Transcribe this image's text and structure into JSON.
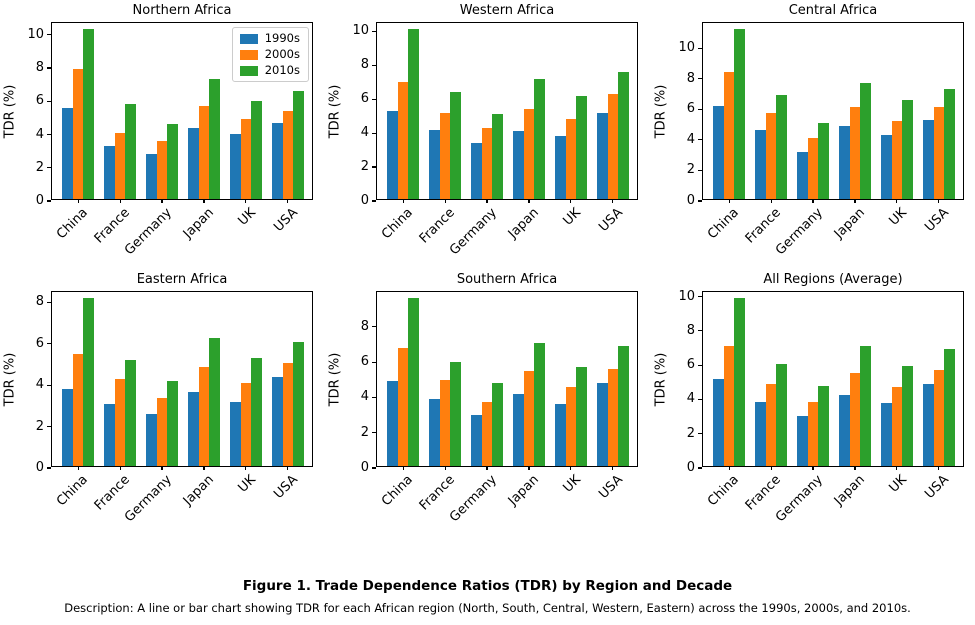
{
  "figure": {
    "caption_title": "Figure 1. Trade Dependence Ratios (TDR) by Region and Decade",
    "caption_description": "Description: A line or bar chart showing TDR for each African region (North, South, Central, Western, Eastern) across the 1990s, 2000s, and 2010s."
  },
  "colors": {
    "1990s": "#1f77b4",
    "2000s": "#ff7f0e",
    "2010s": "#2ca02c",
    "axis": "#000000",
    "background": "#ffffff",
    "legend_border": "#cccccc"
  },
  "legend": {
    "entries": [
      "1990s",
      "2000s",
      "2010s"
    ],
    "position": "upper-right of first subplot only"
  },
  "chart_data": [
    {
      "type": "bar",
      "title": "Northern Africa",
      "ylabel": "TDR (%)",
      "categories": [
        "China",
        "France",
        "Germany",
        "Japan",
        "UK",
        "USA"
      ],
      "series": [
        {
          "name": "1990s",
          "values": [
            5.5,
            3.2,
            2.7,
            4.3,
            3.9,
            4.6
          ]
        },
        {
          "name": "2000s",
          "values": [
            7.8,
            4.0,
            3.5,
            5.6,
            4.8,
            5.3
          ]
        },
        {
          "name": "2010s",
          "values": [
            10.2,
            5.7,
            4.5,
            7.2,
            5.9,
            6.5
          ]
        }
      ],
      "yticks": [
        0,
        2,
        4,
        6,
        8,
        10
      ],
      "ylim": [
        0,
        10.71
      ],
      "grid": false,
      "show_legend": true
    },
    {
      "type": "bar",
      "title": "Western Africa",
      "ylabel": "TDR (%)",
      "categories": [
        "China",
        "France",
        "Germany",
        "Japan",
        "UK",
        "USA"
      ],
      "series": [
        {
          "name": "1990s",
          "values": [
            5.2,
            4.1,
            3.3,
            4.0,
            3.7,
            5.1
          ]
        },
        {
          "name": "2000s",
          "values": [
            6.9,
            5.1,
            4.2,
            5.3,
            4.7,
            6.2
          ]
        },
        {
          "name": "2010s",
          "values": [
            10.0,
            6.3,
            5.0,
            7.1,
            6.1,
            7.5
          ]
        }
      ],
      "yticks": [
        0,
        2,
        4,
        6,
        8,
        10
      ],
      "ylim": [
        0,
        10.5
      ],
      "grid": false,
      "show_legend": false
    },
    {
      "type": "bar",
      "title": "Central Africa",
      "ylabel": "TDR (%)",
      "categories": [
        "China",
        "France",
        "Germany",
        "Japan",
        "UK",
        "USA"
      ],
      "series": [
        {
          "name": "1990s",
          "values": [
            6.1,
            4.5,
            3.1,
            4.8,
            4.2,
            5.2
          ]
        },
        {
          "name": "2000s",
          "values": [
            8.3,
            5.6,
            4.0,
            6.0,
            5.1,
            6.0
          ]
        },
        {
          "name": "2010s",
          "values": [
            11.1,
            6.8,
            5.0,
            7.6,
            6.5,
            7.2
          ]
        }
      ],
      "yticks": [
        0,
        2,
        4,
        6,
        8,
        10
      ],
      "ylim": [
        0,
        11.655
      ],
      "grid": false,
      "show_legend": false
    },
    {
      "type": "bar",
      "title": "Eastern Africa",
      "ylabel": "TDR (%)",
      "categories": [
        "China",
        "France",
        "Germany",
        "Japan",
        "UK",
        "USA"
      ],
      "series": [
        {
          "name": "1990s",
          "values": [
            3.7,
            3.0,
            2.5,
            3.6,
            3.1,
            4.3
          ]
        },
        {
          "name": "2000s",
          "values": [
            5.4,
            4.2,
            3.3,
            4.8,
            4.0,
            5.0
          ]
        },
        {
          "name": "2010s",
          "values": [
            8.1,
            5.1,
            4.1,
            6.2,
            5.2,
            6.0
          ]
        }
      ],
      "yticks": [
        0,
        2,
        4,
        6,
        8
      ],
      "ylim": [
        0,
        8.505
      ],
      "grid": false,
      "show_legend": false
    },
    {
      "type": "bar",
      "title": "Southern Africa",
      "ylabel": "TDR (%)",
      "categories": [
        "China",
        "France",
        "Germany",
        "Japan",
        "UK",
        "USA"
      ],
      "series": [
        {
          "name": "1990s",
          "values": [
            4.8,
            3.8,
            2.9,
            4.1,
            3.5,
            4.7
          ]
        },
        {
          "name": "2000s",
          "values": [
            6.7,
            4.9,
            3.6,
            5.4,
            4.5,
            5.5
          ]
        },
        {
          "name": "2010s",
          "values": [
            9.5,
            5.9,
            4.7,
            7.0,
            5.6,
            6.8
          ]
        }
      ],
      "yticks": [
        0,
        2,
        4,
        6,
        8
      ],
      "ylim": [
        0,
        9.975
      ],
      "grid": false,
      "show_legend": false
    },
    {
      "type": "bar",
      "title": "All Regions (Average)",
      "ylabel": "TDR (%)",
      "categories": [
        "China",
        "France",
        "Germany",
        "Japan",
        "UK",
        "USA"
      ],
      "series": [
        {
          "name": "1990s",
          "values": [
            5.06,
            3.72,
            2.9,
            4.16,
            3.68,
            4.78
          ]
        },
        {
          "name": "2000s",
          "values": [
            7.02,
            4.76,
            3.72,
            5.42,
            4.62,
            5.6
          ]
        },
        {
          "name": "2010s",
          "values": [
            9.78,
            5.96,
            4.66,
            7.02,
            5.86,
            6.8
          ]
        }
      ],
      "yticks": [
        0,
        2,
        4,
        6,
        8,
        10
      ],
      "ylim": [
        0,
        10.269
      ],
      "grid": false,
      "show_legend": false
    }
  ]
}
